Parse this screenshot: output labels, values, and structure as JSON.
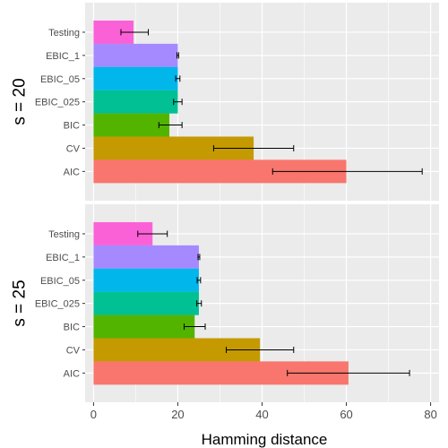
{
  "chart_data": {
    "type": "bar",
    "orientation": "horizontal",
    "xlabel": "Hamming distance",
    "xlim": [
      -2,
      82
    ],
    "xticks": [
      0,
      20,
      40,
      60,
      80
    ],
    "grid": true,
    "legend": "none",
    "categories": [
      "AIC",
      "CV",
      "BIC",
      "EBIC_025",
      "EBIC_05",
      "EBIC_1",
      "Testing"
    ],
    "colors": [
      "#F8766D",
      "#C49A00",
      "#53B400",
      "#00C094",
      "#00B6EB",
      "#A58AFF",
      "#FB61D7"
    ],
    "panels": [
      {
        "label": "s = 20",
        "values": [
          60,
          38,
          18,
          20,
          20,
          20,
          9.5
        ],
        "err_low": [
          42.5,
          28.5,
          15.5,
          19,
          19.5,
          19.8,
          6.5
        ],
        "err_high": [
          78,
          47.5,
          21,
          21,
          20.5,
          20.2,
          13
        ]
      },
      {
        "label": "s = 25",
        "values": [
          60.5,
          39.5,
          24,
          25,
          25,
          25,
          14
        ],
        "err_low": [
          46,
          31.5,
          21.5,
          24.5,
          24.6,
          24.8,
          10.5
        ],
        "err_high": [
          75,
          47.5,
          26.5,
          25.6,
          25.4,
          25.2,
          17.5
        ]
      }
    ]
  }
}
